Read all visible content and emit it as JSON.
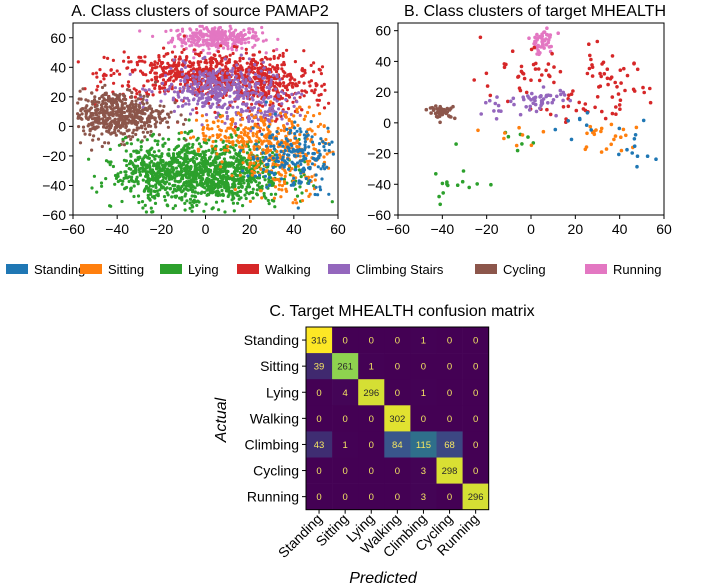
{
  "colors": {
    "Standing": "#1f77b4",
    "Sitting": "#ff7f0e",
    "Lying": "#2ca02c",
    "Walking": "#d62728",
    "Climbing Stairs": "#9467bd",
    "Cycling": "#8c564b",
    "Running": "#e377c2"
  },
  "legend": [
    "Standing",
    "Sitting",
    "Lying",
    "Walking",
    "Climbing Stairs",
    "Cycling",
    "Running"
  ],
  "chart_data": [
    {
      "type": "scatter",
      "title": "A. Class clusters of source PAMAP2",
      "xlim": [
        -60,
        60
      ],
      "ylim": [
        -60,
        70
      ],
      "xticks": [
        -60,
        -40,
        -20,
        0,
        20,
        40,
        60
      ],
      "yticks": [
        -60,
        -40,
        -20,
        0,
        20,
        40,
        60
      ],
      "series": [
        {
          "name": "Running",
          "clusters": [
            {
              "x": 5,
              "y": 60,
              "sx": 10,
              "sy": 4,
              "n": 320
            }
          ]
        },
        {
          "name": "Walking",
          "clusters": [
            {
              "x": 0,
              "y": 35,
              "sx": 22,
              "sy": 8,
              "n": 650
            },
            {
              "x": 30,
              "y": 25,
              "sx": 12,
              "sy": 9,
              "n": 220
            }
          ]
        },
        {
          "name": "Climbing Stairs",
          "clusters": [
            {
              "x": 5,
              "y": 25,
              "sx": 13,
              "sy": 8,
              "n": 360
            },
            {
              "x": 25,
              "y": 10,
              "sx": 8,
              "sy": 6,
              "n": 90
            }
          ]
        },
        {
          "name": "Cycling",
          "clusters": [
            {
              "x": -40,
              "y": 8,
              "sx": 11,
              "sy": 8,
              "n": 520
            }
          ]
        },
        {
          "name": "Lying",
          "clusters": [
            {
              "x": 0,
              "y": -32,
              "sx": 18,
              "sy": 11,
              "n": 1100
            },
            {
              "x": -25,
              "y": -30,
              "sx": 8,
              "sy": 9,
              "n": 160
            }
          ]
        },
        {
          "name": "Sitting",
          "clusters": [
            {
              "x": 35,
              "y": -18,
              "sx": 11,
              "sy": 14,
              "n": 300
            },
            {
              "x": 15,
              "y": -5,
              "sx": 12,
              "sy": 7,
              "n": 120
            }
          ]
        },
        {
          "name": "Standing",
          "clusters": [
            {
              "x": 40,
              "y": -20,
              "sx": 10,
              "sy": 12,
              "n": 200
            }
          ]
        }
      ]
    },
    {
      "type": "scatter",
      "title": "B. Class clusters of target MHEALTH",
      "xlim": [
        -60,
        60
      ],
      "ylim": [
        -60,
        65
      ],
      "xticks": [
        -60,
        -40,
        -20,
        0,
        20,
        40,
        60
      ],
      "yticks": [
        -60,
        -40,
        -20,
        0,
        20,
        40,
        60
      ],
      "series": [
        {
          "name": "Running",
          "clusters": [
            {
              "x": 5,
              "y": 53,
              "sx": 3,
              "sy": 4,
              "n": 45
            }
          ]
        },
        {
          "name": "Walking",
          "clusters": [
            {
              "x": -5,
              "y": 30,
              "sx": 12,
              "sy": 9,
              "n": 40
            },
            {
              "x": 35,
              "y": 25,
              "sx": 9,
              "sy": 10,
              "n": 45
            },
            {
              "x": 20,
              "y": 10,
              "sx": 10,
              "sy": 4,
              "n": 20
            }
          ]
        },
        {
          "name": "Climbing Stairs",
          "clusters": [
            {
              "x": 5,
              "y": 15,
              "sx": 6,
              "sy": 4,
              "n": 45
            },
            {
              "x": -15,
              "y": 10,
              "sx": 4,
              "sy": 3,
              "n": 12
            }
          ]
        },
        {
          "name": "Cycling",
          "clusters": [
            {
              "x": -40,
              "y": 7,
              "sx": 3,
              "sy": 2,
              "n": 40
            }
          ]
        },
        {
          "name": "Lying",
          "clusters": [
            {
              "x": -35,
              "y": -42,
              "sx": 8,
              "sy": 6,
              "n": 14
            },
            {
              "x": -10,
              "y": -5,
              "sx": 10,
              "sy": 5,
              "n": 8
            }
          ]
        },
        {
          "name": "Sitting",
          "clusters": [
            {
              "x": 35,
              "y": -10,
              "sx": 10,
              "sy": 7,
              "n": 22
            },
            {
              "x": -5,
              "y": -10,
              "sx": 10,
              "sy": 6,
              "n": 8
            }
          ]
        },
        {
          "name": "Standing",
          "clusters": [
            {
              "x": 50,
              "y": -15,
              "sx": 6,
              "sy": 12,
              "n": 12
            },
            {
              "x": 20,
              "y": -2,
              "sx": 8,
              "sy": 5,
              "n": 8
            }
          ]
        }
      ]
    },
    {
      "type": "heatmap",
      "title": "C. Target MHEALTH confusion matrix",
      "xlabel": "Predicted",
      "ylabel": "Actual",
      "labels": [
        "Standing",
        "Sitting",
        "Lying",
        "Walking",
        "Climbing",
        "Cycling",
        "Running"
      ],
      "matrix": [
        [
          316,
          0,
          0,
          0,
          1,
          0,
          0
        ],
        [
          39,
          261,
          1,
          0,
          0,
          0,
          0
        ],
        [
          0,
          4,
          296,
          0,
          1,
          0,
          0
        ],
        [
          0,
          0,
          0,
          302,
          0,
          0,
          0
        ],
        [
          43,
          1,
          0,
          84,
          115,
          68,
          0
        ],
        [
          0,
          0,
          0,
          0,
          3,
          298,
          0
        ],
        [
          0,
          0,
          0,
          0,
          3,
          0,
          296
        ]
      ],
      "vmax": 316
    }
  ]
}
